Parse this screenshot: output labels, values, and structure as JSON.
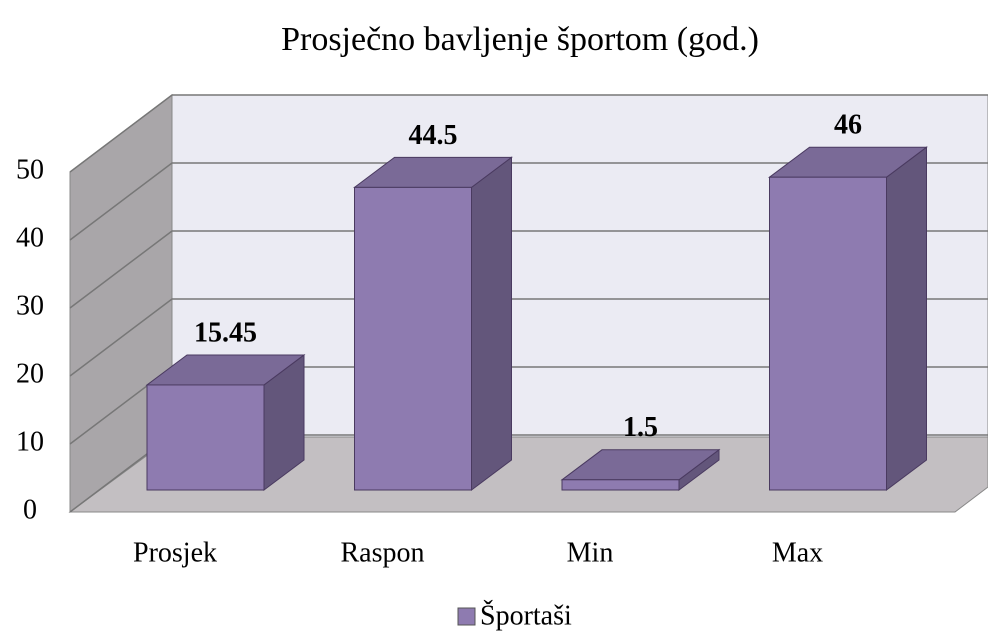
{
  "chart_data": {
    "type": "bar3d",
    "title": "Prosječno bavljenje športom (god.)",
    "categories": [
      "Prosjek",
      "Raspon",
      "Min",
      "Max"
    ],
    "series": [
      {
        "name": "Športaši",
        "color": "#8e7bb0",
        "values": [
          15.45,
          44.5,
          1.5,
          46
        ]
      }
    ],
    "ylim": [
      0,
      50
    ],
    "yticks": [
      0,
      10,
      20,
      30,
      40,
      50
    ],
    "grid": true
  }
}
